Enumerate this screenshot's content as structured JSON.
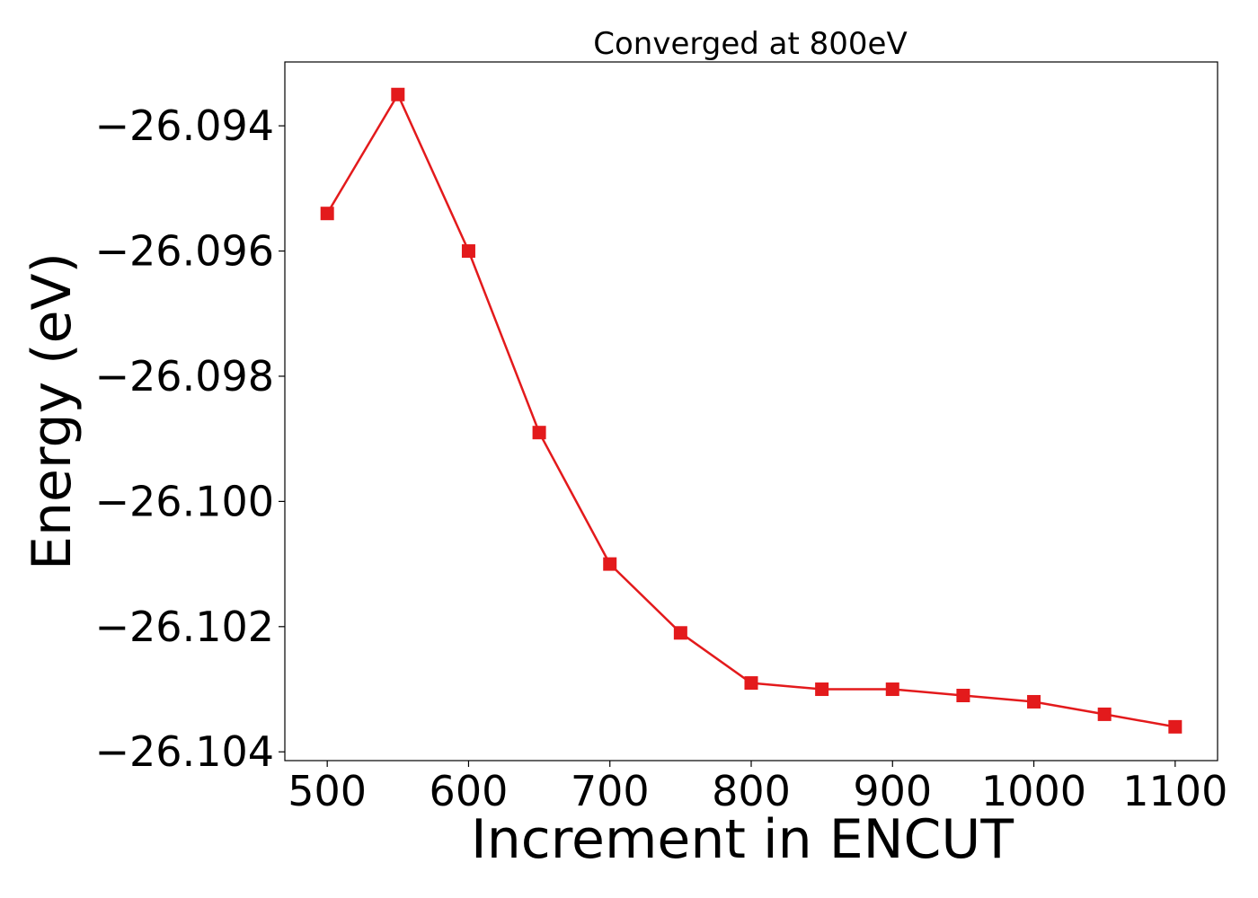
{
  "chart_data": {
    "type": "line",
    "title": "Converged at 800eV",
    "xlabel": "Increment in ENCUT",
    "ylabel": "Energy (eV)",
    "xlim": [
      470,
      1130
    ],
    "ylim": [
      -26.10414,
      -26.09298
    ],
    "x_ticks": [
      500,
      600,
      700,
      800,
      900,
      1000,
      1100
    ],
    "x_tick_labels": [
      "500",
      "600",
      "700",
      "800",
      "900",
      "1000",
      "1100"
    ],
    "y_ticks": [
      -26.094,
      -26.096,
      -26.098,
      -26.1,
      -26.102,
      -26.104
    ],
    "y_tick_labels": [
      "−26.094",
      "−26.096",
      "−26.098",
      "−26.100",
      "−26.102",
      "−26.104"
    ],
    "grid": false,
    "marker": "square",
    "color": "#e31a1c",
    "series": [
      {
        "x": [
          500,
          550,
          600,
          650,
          700,
          750,
          800,
          850,
          900,
          950,
          1000,
          1050,
          1100
        ],
        "y": [
          -26.0954,
          -26.0935,
          -26.096,
          -26.0989,
          -26.101,
          -26.1021,
          -26.1029,
          -26.103,
          -26.103,
          -26.1031,
          -26.1032,
          -26.1034,
          -26.1036
        ]
      }
    ]
  }
}
